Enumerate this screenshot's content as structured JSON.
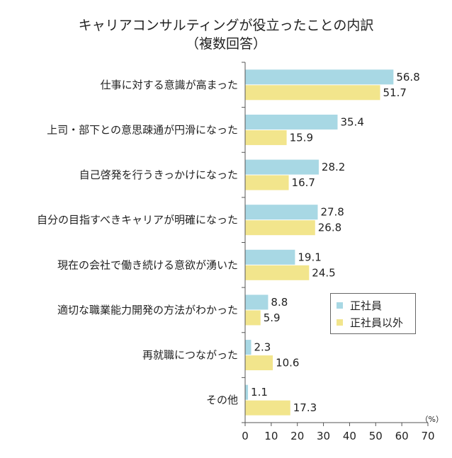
{
  "chart_data": {
    "type": "bar",
    "orientation": "horizontal",
    "title": "キャリアコンサルティングが役立ったことの内訳",
    "subtitle": "（複数回答）",
    "unit": "（%）",
    "categories": [
      "仕事に対する意識が高まった",
      "上司・部下との意思疎通が円滑になった",
      "自己啓発を行うきっかけになった",
      "自分の目指すべきキャリアが明確になった",
      "現在の会社で働き続ける意欲が湧いた",
      "適切な職業能力開発の方法がわかった",
      "再就職につながった",
      "その他"
    ],
    "series": [
      {
        "name": "正社員",
        "color": "#a8d8e4",
        "values": [
          56.8,
          35.4,
          28.2,
          27.8,
          19.1,
          8.8,
          2.3,
          1.1
        ]
      },
      {
        "name": "正社員以外",
        "color": "#f2e58c",
        "values": [
          51.7,
          15.9,
          16.7,
          26.8,
          24.5,
          5.9,
          10.6,
          17.3
        ]
      }
    ],
    "xlim": [
      0,
      70
    ],
    "xticks": [
      0,
      10,
      20,
      30,
      40,
      50,
      60,
      70
    ],
    "grid": false,
    "legend_position": "right"
  }
}
